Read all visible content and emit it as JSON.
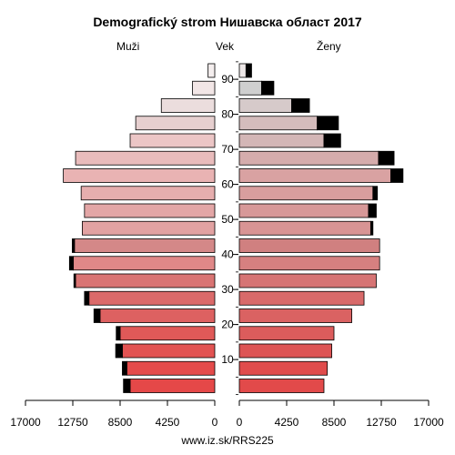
{
  "chart_data": {
    "type": "bar",
    "title": "Demografický strom Нишавска област 2017",
    "left_label": "Muži",
    "center_label": "Vek",
    "right_label": "Ženy",
    "footer": "www.iz.sk/RRS225",
    "age_groups": [
      "0-4",
      "5-9",
      "10-14",
      "15-19",
      "20-24",
      "25-29",
      "30-34",
      "35-39",
      "40-44",
      "45-49",
      "50-54",
      "55-59",
      "60-64",
      "65-69",
      "70-74",
      "75-79",
      "80-84",
      "85-89",
      "90+"
    ],
    "age_tick_labels": [
      "10",
      "20",
      "30",
      "40",
      "50",
      "60",
      "70",
      "80",
      "90"
    ],
    "age_tick_values": [
      10,
      20,
      30,
      40,
      50,
      60,
      70,
      80,
      90
    ],
    "x_tick_labels_left": [
      "17000",
      "12750",
      "8500",
      "4250",
      "0"
    ],
    "x_tick_labels_right": [
      "0",
      "4250",
      "8500",
      "12750",
      "17000"
    ],
    "xlim": [
      0,
      17000
    ],
    "series": [
      {
        "name": "Muži",
        "base": [
          7600,
          7900,
          8300,
          8500,
          10300,
          11300,
          12500,
          12700,
          12600,
          11900,
          11700,
          12000,
          13600,
          12500,
          7600,
          7100,
          4800,
          2000,
          600
        ],
        "excess": [
          600,
          400,
          600,
          350,
          550,
          400,
          150,
          350,
          200,
          0,
          0,
          0,
          0,
          0,
          0,
          0,
          0,
          0,
          0
        ]
      },
      {
        "name": "Ženy",
        "base": [
          7600,
          7900,
          8300,
          8500,
          10100,
          11200,
          12300,
          12600,
          12600,
          11800,
          11600,
          12000,
          13600,
          12500,
          7600,
          7000,
          4700,
          2000,
          600
        ],
        "excess": [
          0,
          0,
          0,
          0,
          0,
          0,
          0,
          0,
          0,
          200,
          700,
          400,
          1100,
          1400,
          1500,
          1900,
          1600,
          1100,
          500
        ]
      }
    ],
    "colors": {
      "base": [
        "#e54848",
        "#e44b4b",
        "#e25352",
        "#e05958",
        "#dd6161",
        "#db6a6a",
        "#d97473",
        "#e08888",
        "#d48888",
        "#e2a2a2",
        "#e3a6a6",
        "#e6aeae",
        "#e9b3b3",
        "#e9bcbc",
        "#ecc6c6",
        "#e6cfcf",
        "#ebdddd",
        "#f2e6e6",
        "#f4eeee"
      ],
      "base_women": [
        "#e24a4a",
        "#e04c4c",
        "#dd5454",
        "#dc5c5c",
        "#da6262",
        "#d86a6a",
        "#d67474",
        "#d68080",
        "#d08080",
        "#d89494",
        "#d79898",
        "#d99e9e",
        "#d9a2a2",
        "#d5acac",
        "#d3b6b6",
        "#d4bcbc",
        "#d6caca",
        "#cfcfcf",
        "#ece6e6"
      ],
      "excess": "#000000",
      "axis": "#000000"
    }
  }
}
